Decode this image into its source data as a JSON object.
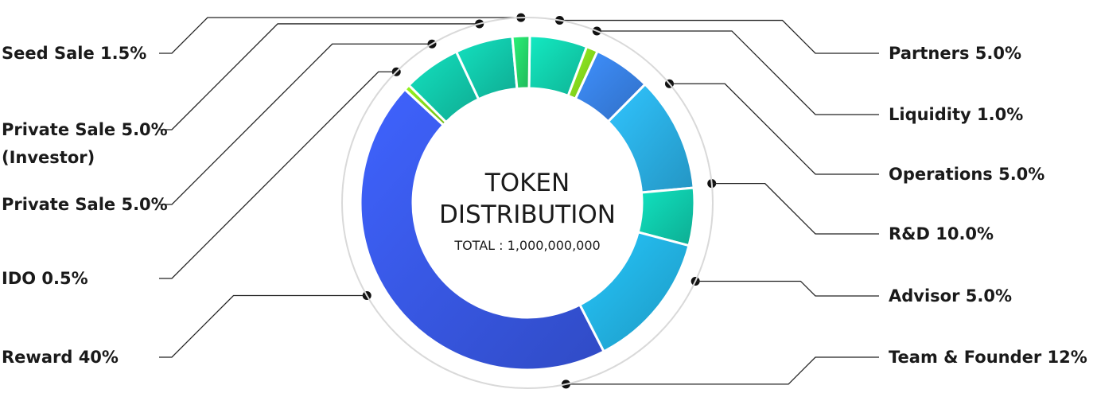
{
  "chart_data": {
    "type": "pie",
    "title_line1": "TOKEN",
    "title_line2": "DISTRIBUTION",
    "subtitle": "TOTAL : 1,000,000,000",
    "slices": [
      {
        "name": "Partners",
        "value_label": "5.0%",
        "value": 5.0,
        "color": "#12d9b4"
      },
      {
        "name": "Liquidity",
        "value_label": "1.0%",
        "value": 1.0,
        "color": "#8be31e"
      },
      {
        "name": "Operations",
        "value_label": "5.0%",
        "value": 5.0,
        "color": "#3a86ef"
      },
      {
        "name": "R&D",
        "value_label": "10.0%",
        "value": 10.0,
        "color": "#2cb6ee"
      },
      {
        "name": "Advisor",
        "value_label": "5.0%",
        "value": 5.0,
        "color": "#10d2b2"
      },
      {
        "name": "Team & Founder",
        "value_label": "12%",
        "value": 12.0,
        "color": "#23b8ea"
      },
      {
        "name": "Reward",
        "value_label": "40%",
        "value": 40.0,
        "color": "#3a5cf0"
      },
      {
        "name": "IDO",
        "value_label": "0.5%",
        "value": 0.5,
        "color": "#8be31e"
      },
      {
        "name": "Private Sale",
        "value_label": "5.0%",
        "value": 5.0,
        "color": "#12d1b2"
      },
      {
        "name": "Private Sale",
        "value_label": "5.0%",
        "sublabel": "(Investor)",
        "value": 5.0,
        "color": "#12d1b2"
      },
      {
        "name": "Seed Sale",
        "value_label": "1.5%",
        "value": 1.5,
        "color": "#27e06e"
      }
    ]
  }
}
